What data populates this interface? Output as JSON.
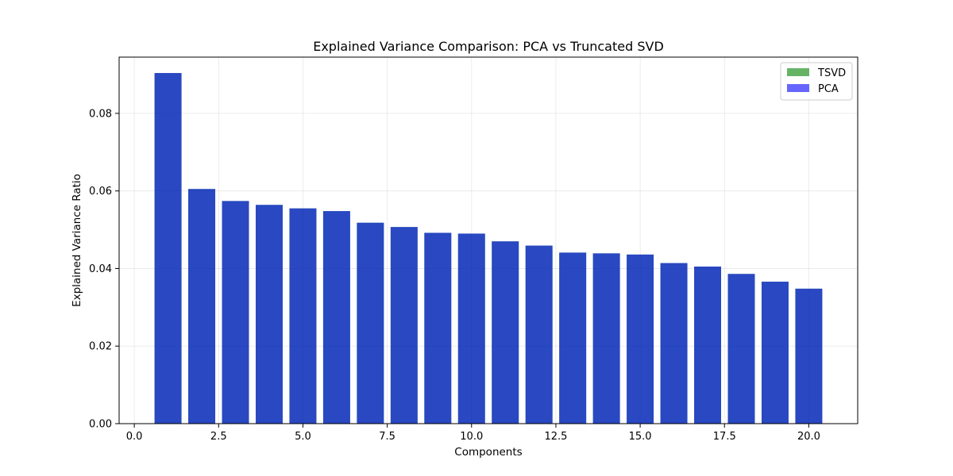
{
  "chart_data": {
    "type": "bar",
    "title": "Explained Variance Comparison: PCA vs Truncated SVD",
    "xlabel": "Components",
    "ylabel": "Explained Variance Ratio",
    "xlim": [
      -0.45,
      21.45
    ],
    "ylim": [
      0,
      0.0945
    ],
    "xticks": [
      0.0,
      2.5,
      5.0,
      7.5,
      10.0,
      12.5,
      15.0,
      17.5,
      20.0
    ],
    "xtick_labels": [
      "0.0",
      "2.5",
      "5.0",
      "7.5",
      "10.0",
      "12.5",
      "15.0",
      "17.5",
      "20.0"
    ],
    "yticks": [
      0.0,
      0.02,
      0.04,
      0.06,
      0.08
    ],
    "ytick_labels": [
      "0.00",
      "0.02",
      "0.04",
      "0.06",
      "0.08"
    ],
    "grid": true,
    "legend_position": "top-right",
    "bar_width": 0.8,
    "x": [
      1,
      2,
      3,
      4,
      5,
      6,
      7,
      8,
      9,
      10,
      11,
      12,
      13,
      14,
      15,
      16,
      17,
      18,
      19,
      20
    ],
    "series": [
      {
        "name": "TSVD",
        "color": "#008000",
        "alpha": 0.6,
        "values": [
          0.0904,
          0.0605,
          0.0574,
          0.0564,
          0.0555,
          0.0548,
          0.0518,
          0.0507,
          0.0492,
          0.049,
          0.047,
          0.0459,
          0.0441,
          0.0439,
          0.0436,
          0.0414,
          0.0405,
          0.0386,
          0.0366,
          0.0348
        ]
      },
      {
        "name": "PCA",
        "color": "#0000ff",
        "alpha": 0.6,
        "values": [
          0.0904,
          0.0605,
          0.0574,
          0.0564,
          0.0555,
          0.0548,
          0.0518,
          0.0507,
          0.0492,
          0.049,
          0.047,
          0.0459,
          0.0441,
          0.0439,
          0.0436,
          0.0414,
          0.0405,
          0.0386,
          0.0366,
          0.0348
        ]
      }
    ]
  }
}
